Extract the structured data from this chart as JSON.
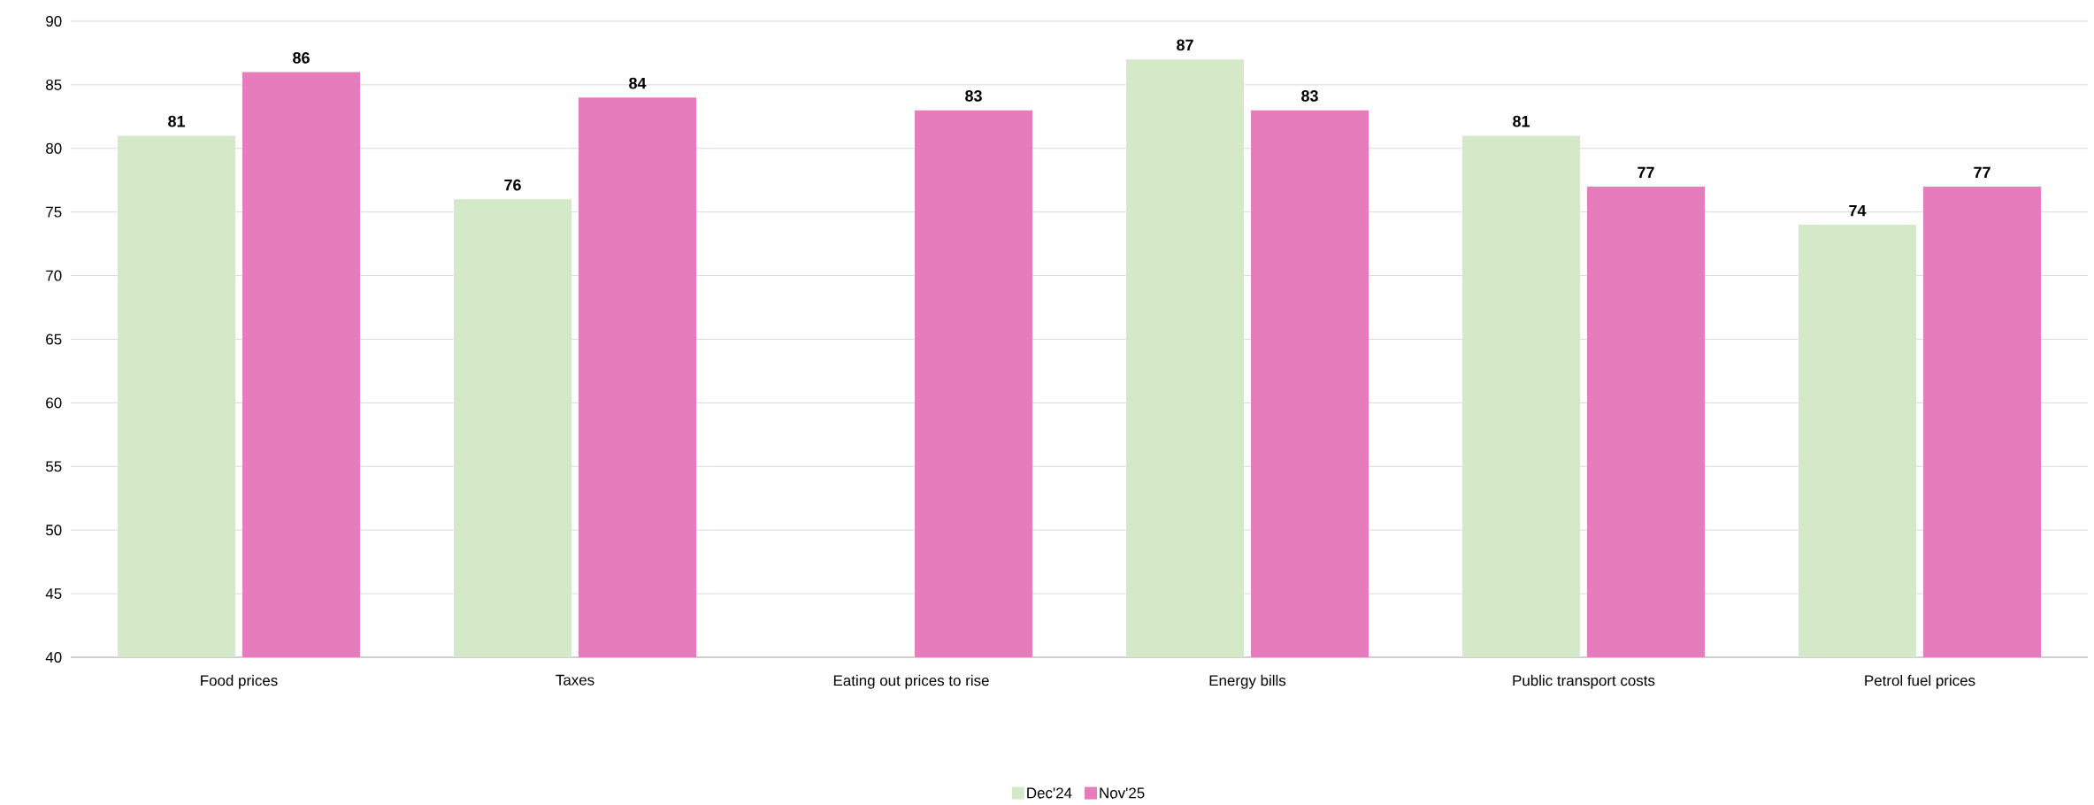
{
  "chart_data": {
    "type": "bar",
    "categories": [
      "Food prices",
      "Taxes",
      "Eating out prices to rise",
      "Energy bills",
      "Public transport costs",
      "Petrol fuel prices"
    ],
    "series": [
      {
        "name": "Dec'24",
        "color": "#d3e9c8",
        "values": [
          81,
          76,
          null,
          87,
          81,
          74
        ]
      },
      {
        "name": "Nov'25",
        "color": "#e67cbb",
        "values": [
          86,
          84,
          83,
          83,
          77,
          77
        ]
      }
    ],
    "ylim": [
      40,
      90
    ],
    "yticks": [
      40,
      45,
      50,
      55,
      60,
      65,
      70,
      75,
      80,
      85,
      90
    ],
    "grid": "y",
    "legend": "bottom",
    "data_labels": true
  }
}
